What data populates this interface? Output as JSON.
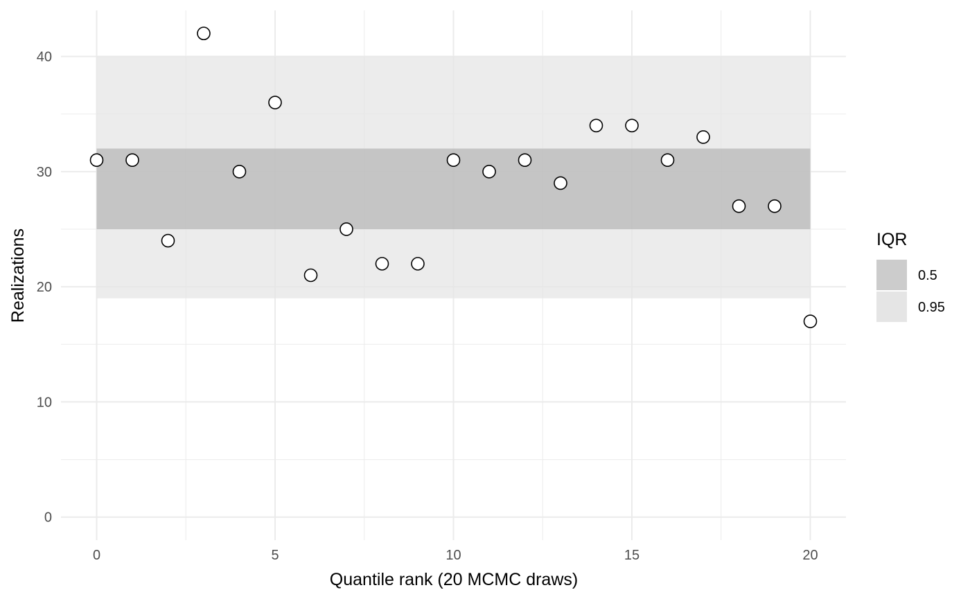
{
  "chart_data": {
    "type": "scatter",
    "xlabel": "Quantile rank (20 MCMC draws)",
    "ylabel": "Realizations",
    "xlim": [
      -1,
      21
    ],
    "ylim": [
      -2,
      44
    ],
    "x_ticks": [
      0,
      5,
      10,
      15,
      20
    ],
    "y_ticks": [
      0,
      10,
      20,
      30,
      40
    ],
    "grid": true,
    "x": [
      0,
      1,
      2,
      3,
      4,
      5,
      6,
      7,
      8,
      9,
      10,
      11,
      12,
      13,
      14,
      15,
      16,
      17,
      18,
      19,
      20
    ],
    "y": [
      31,
      31,
      24,
      42,
      30,
      36,
      21,
      25,
      22,
      22,
      31,
      30,
      31,
      29,
      34,
      34,
      31,
      33,
      27,
      27,
      17
    ],
    "bands": [
      {
        "name": "0.95",
        "xrange": [
          0,
          20
        ],
        "ymin": 19,
        "ymax": 40,
        "color": "#e5e5e5"
      },
      {
        "name": "0.5",
        "xrange": [
          0,
          20
        ],
        "ymin": 25,
        "ymax": 32,
        "color": "#b6b6b6"
      }
    ],
    "legend": {
      "title": "IQR",
      "position": "right",
      "items": [
        {
          "label": "0.5",
          "color": "#cccccc"
        },
        {
          "label": "0.95",
          "color": "#e5e5e5"
        }
      ]
    },
    "point_fill": "#ffffff",
    "point_stroke": "#000000",
    "grid_color": "#ebebeb"
  }
}
